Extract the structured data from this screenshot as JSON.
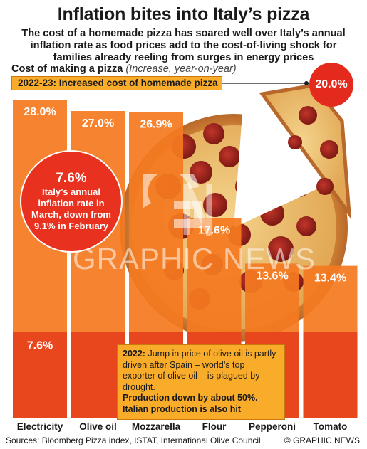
{
  "header": {
    "title": "Inflation bites into Italy’s pizza",
    "subtitle": "The cost of a homemade pizza has soared well over Italy’s annual inflation rate as food prices add to the cost-of-living shock for families already reeling from surges in energy prices"
  },
  "chart_title": {
    "main": "Cost of making a pizza",
    "note": "(Increase, year-on-year)"
  },
  "highlight_label": "2022-23: Increased cost of homemade pizza",
  "total_badge": "20.0%",
  "inflation_callout": {
    "value": "7.6%",
    "text": "Italy’s annual inflation rate in March, down from 9.1% in February"
  },
  "olive_note": {
    "year": "2022:",
    "text": "Jump in price of olive oil is partly driven after Spain – world’s top exporter of olive oil – is plagued by drought.",
    "line1": "Production down by about 50%.",
    "line2": "Italian production is also hit"
  },
  "watermark": "GRAPHIC NEWS",
  "footer": {
    "sources": "Sources: Bloomberg Pizza index, ISTAT, International Olive Council",
    "credit": "© GRAPHIC NEWS"
  },
  "colors": {
    "bar": "#f47a20",
    "bar_edge": "#d8620d",
    "inflation_band": "#e8461c",
    "label_box": "#f9ab2a",
    "red": "#e42a1c"
  },
  "chart_data": {
    "type": "bar",
    "title": "Cost of making a pizza",
    "ylabel": "",
    "xlabel": "",
    "categories": [
      "Electricity",
      "Olive oil",
      "Mozzarella",
      "Flour",
      "Pepperoni",
      "Tomato"
    ],
    "values": [
      28.0,
      27.0,
      26.9,
      17.6,
      13.6,
      13.4
    ],
    "value_labels": [
      "28.0%",
      "27.0%",
      "26.9%",
      "17.6%",
      "13.6%",
      "13.4%"
    ],
    "reference_line": {
      "value": 7.6,
      "label": "7.6%"
    },
    "ylim": [
      0,
      28.0
    ],
    "grid": false
  }
}
